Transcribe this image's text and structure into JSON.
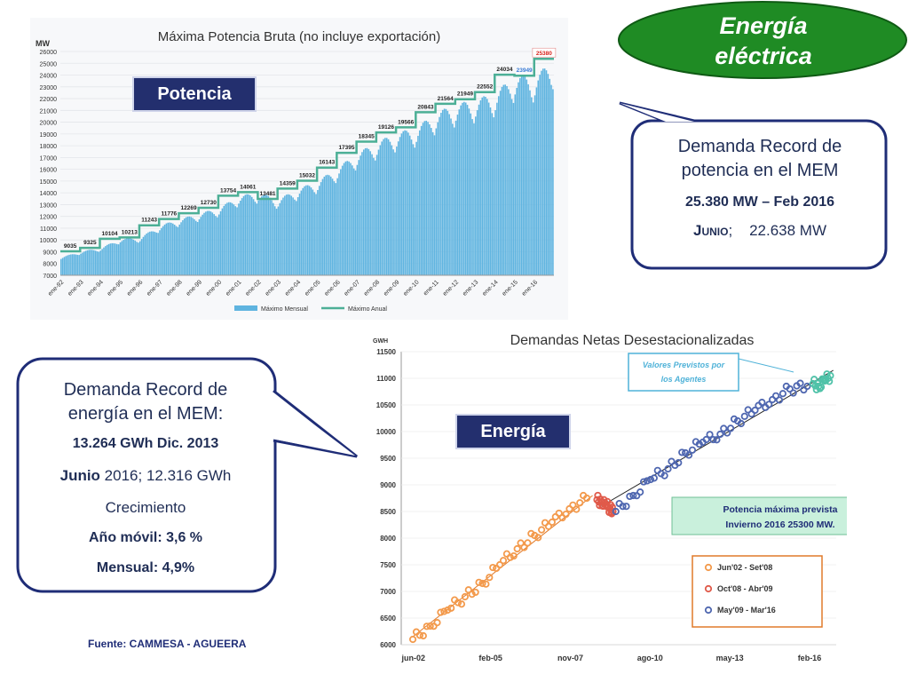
{
  "header": {
    "title_line1": "Energía",
    "title_line2": "eléctrica",
    "ellipse_color": "#1f8b24"
  },
  "tags": {
    "potencia": "Potencia",
    "energia": "Energía"
  },
  "callout_potencia": {
    "line1": "Demanda Record de",
    "line2": "potencia en el MEM",
    "record": "25.380 MW – Feb 2016",
    "junio_label": "Junio",
    "junio_value": ";    22.638 MW"
  },
  "callout_energia": {
    "line1": "Demanda Record de",
    "line2": "energía en el MEM:",
    "record": "13.264  GWh Dic. 2013",
    "junio_label": "Junio",
    "junio_value": " 2016; 12.316 GWh",
    "growth": "Crecimiento",
    "annual": "Año móvil: 3,6 %",
    "monthly": "Mensual: 4,9%"
  },
  "footer": {
    "source": "Fuente: CAMMESA  - AGUEERA"
  },
  "chart_data": [
    {
      "type": "area",
      "title": "Máxima Potencia Bruta (no incluye exportación)",
      "ylabel": "MW",
      "ylim": [
        7000,
        26000
      ],
      "yticks": [
        7000,
        8000,
        9000,
        10000,
        11000,
        12000,
        13000,
        14000,
        15000,
        16000,
        17000,
        18000,
        19000,
        20000,
        21000,
        22000,
        23000,
        24000,
        25000,
        26000
      ],
      "x": [
        "ene-92",
        "ene-93",
        "ene-94",
        "ene-95",
        "ene-96",
        "ene-97",
        "ene-98",
        "ene-99",
        "ene-00",
        "ene-01",
        "ene-02",
        "ene-03",
        "ene-04",
        "ene-05",
        "ene-06",
        "ene-07",
        "ene-08",
        "ene-09",
        "ene-10",
        "ene-11",
        "ene-12",
        "ene-13",
        "ene-14",
        "ene-15",
        "ene-16"
      ],
      "annual_max": [
        9035,
        9325,
        10104,
        10213,
        11243,
        11776,
        12269,
        12730,
        13754,
        14061,
        13481,
        14359,
        15032,
        16143,
        17395,
        18345,
        19126,
        19566,
        20843,
        21564,
        21949,
        22552,
        24034,
        23949,
        25380
      ],
      "legend": [
        "Máximo Mensual",
        "Máximo Anual"
      ],
      "legend_position": "bottom",
      "colors": {
        "monthly": "#5fb4e0",
        "annual": "#4caf96",
        "record_label": "#d9221b",
        "label_2015": "#3a7bd5"
      }
    },
    {
      "type": "scatter",
      "title": "Demandas Netas Desestacionalizadas",
      "ylabel": "GWH",
      "ylim": [
        6000,
        11500
      ],
      "yticks": [
        6000,
        6500,
        7000,
        7500,
        8000,
        8500,
        9000,
        9500,
        10000,
        10500,
        11000,
        11500
      ],
      "xticks": [
        "jun-02",
        "feb-05",
        "nov-07",
        "ago-10",
        "may-13",
        "feb-16"
      ],
      "series": [
        {
          "name": "Jun'02 - Set'08",
          "color": "#f39a4c",
          "x": [
            2002.4,
            2003.0,
            2003.6,
            2004.2,
            2004.8,
            2005.4,
            2006.0,
            2006.6,
            2007.2,
            2007.8,
            2008.4
          ],
          "y": [
            6100,
            6350,
            6650,
            6900,
            7150,
            7500,
            7800,
            8050,
            8300,
            8550,
            8750
          ]
        },
        {
          "name": "Oct'08 - Abr'09",
          "color": "#e05a4a",
          "x": [
            2008.75,
            2008.9,
            2009.05,
            2009.2,
            2009.3
          ],
          "y": [
            8720,
            8680,
            8620,
            8560,
            8500
          ]
        },
        {
          "name": "May'09 - Mar'16",
          "color": "#4f67b0",
          "x": [
            2009.4,
            2010.0,
            2010.6,
            2011.2,
            2011.8,
            2012.4,
            2013.0,
            2013.6,
            2014.2,
            2014.8,
            2015.4,
            2016.0
          ],
          "y": [
            8500,
            8800,
            9100,
            9300,
            9600,
            9800,
            9950,
            10200,
            10400,
            10600,
            10800,
            10850
          ]
        },
        {
          "name": "Valores Previstos por los Agentes",
          "color": "#4fc2a8",
          "x": [
            2016.2,
            2016.4,
            2016.6,
            2016.8
          ],
          "y": [
            10900,
            10850,
            10950,
            11050
          ]
        }
      ],
      "annotations": [
        "Valores Previstos por los Agentes",
        "Potencia máxima prevista Invierno 2016 25300 MW."
      ],
      "legend_position": "bottom-right"
    }
  ]
}
